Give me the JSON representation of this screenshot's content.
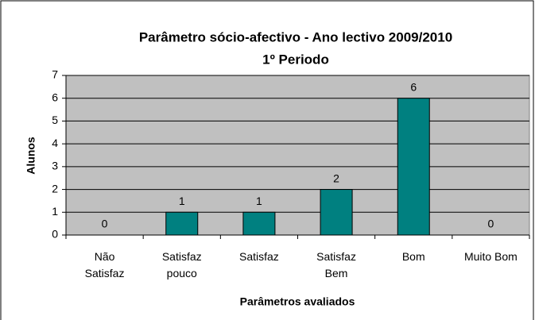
{
  "chart_data": {
    "type": "bar",
    "title": "Parâmetro sócio-afectivo - Ano lectivo 2009/2010",
    "subtitle": "1º Periodo",
    "categories": [
      "Não Satisfaz",
      "Satisfaz pouco",
      "Satisfaz",
      "Satisfaz Bem",
      "Bom",
      "Muito Bom"
    ],
    "values": [
      0,
      1,
      1,
      2,
      6,
      0
    ],
    "color": "#008080",
    "ylim": [
      0,
      7
    ],
    "yticks": [
      0,
      1,
      2,
      3,
      4,
      5,
      6,
      7
    ],
    "grid": true,
    "xlabel": "Parâmetros avaliados",
    "ylabel": "Alunos"
  }
}
